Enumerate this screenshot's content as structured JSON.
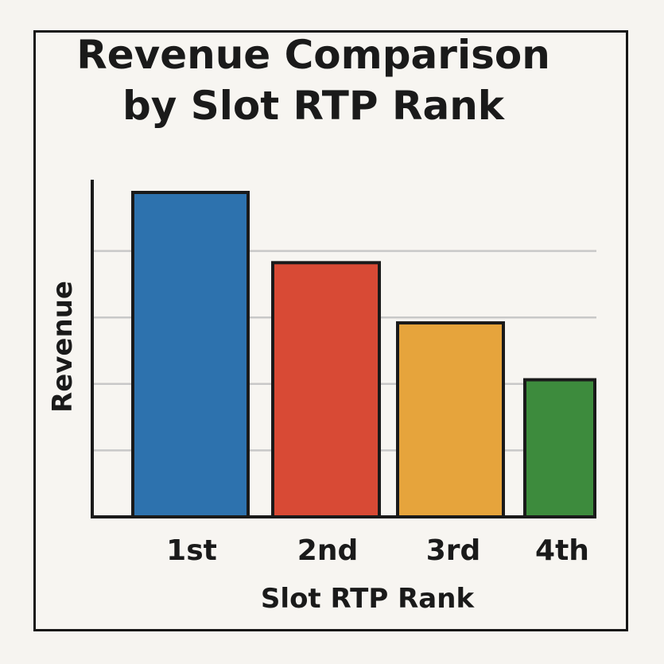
{
  "chart_data": {
    "type": "bar",
    "title": "Revenue Comparison by Slot RTP Rank",
    "xlabel": "Slot RTP Rank",
    "ylabel": "Revenue",
    "categories": [
      "1st",
      "2nd",
      "3rd",
      "4th"
    ],
    "values": [
      97,
      76,
      58,
      41
    ],
    "ylim": [
      0,
      100
    ],
    "grid": true,
    "legend": "none",
    "colors": [
      "#2d72ae",
      "#d84a35",
      "#e6a43c",
      "#3d8b3d"
    ],
    "axis_color": "#1a1a1a",
    "grid_color": "#c8c8c8"
  }
}
